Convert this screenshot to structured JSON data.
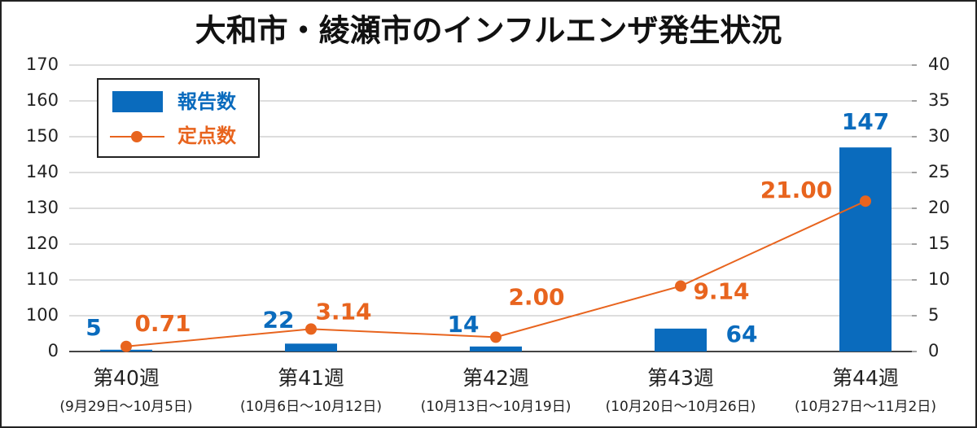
{
  "chart_data": {
    "type": "bar_line",
    "title": "大和市・綾瀬市のインフルエンザ発生状況",
    "categories": [
      "第40週",
      "第41週",
      "第42週",
      "第43週",
      "第44週"
    ],
    "category_dates": [
      "(9月29日～10月5日)",
      "(10月6日～10月12日)",
      "(10月13日～10月19日)",
      "(10月20日～10月26日)",
      "(10月27日～11月2日)"
    ],
    "series": [
      {
        "name": "報告数",
        "color": "#0a6bbd",
        "type": "bar",
        "values": [
          5,
          22,
          14,
          64,
          147
        ]
      },
      {
        "name": "定点数",
        "color": "#e8641e",
        "type": "line",
        "axis": "y2",
        "values": [
          0.71,
          3.14,
          2.0,
          9.14,
          21.0
        ],
        "value_labels": [
          "0.71",
          "3.14",
          "2.00",
          "9.14",
          "21.00"
        ]
      }
    ],
    "ylim": [
      0,
      170
    ],
    "yticks": [
      0,
      100,
      110,
      120,
      130,
      140,
      150,
      160,
      170
    ],
    "y2lim": [
      0,
      40
    ],
    "y2ticks": [
      0,
      5,
      10,
      15,
      20,
      25,
      30,
      35,
      40
    ],
    "grid": true,
    "legend": "upper left"
  }
}
